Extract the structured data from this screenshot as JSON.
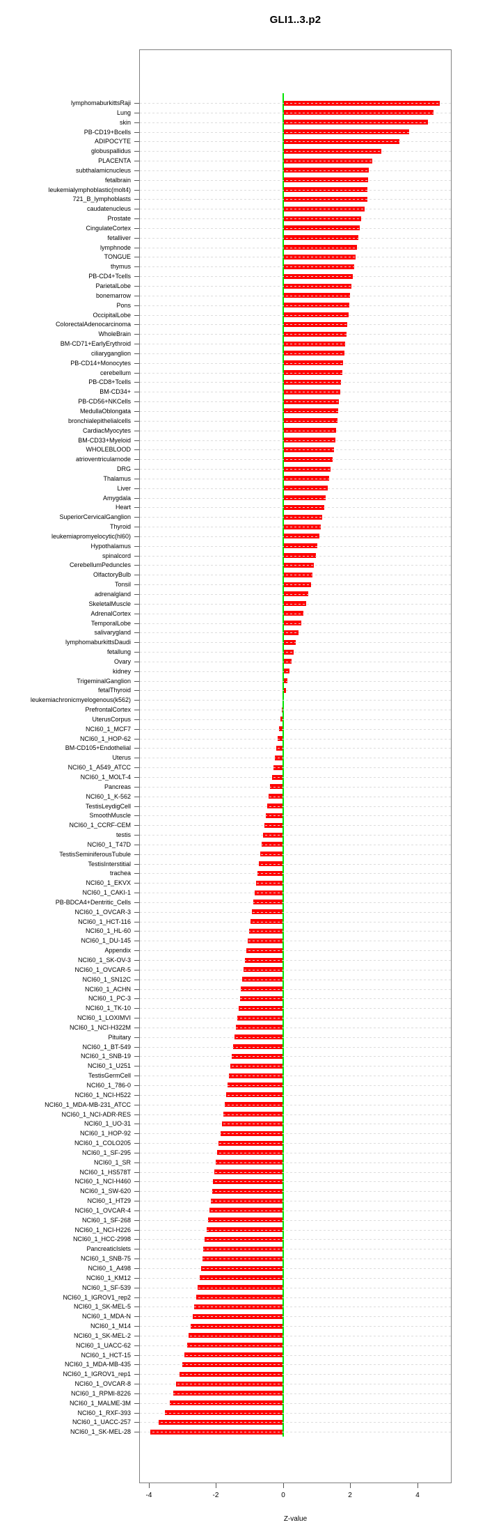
{
  "title": "GLI1..3.p2",
  "axis": {
    "xlabel": "Z-value",
    "x_tick_labels": [
      "-4",
      "-2",
      "0",
      "2",
      "4"
    ],
    "x_tick_values": [
      -4,
      -2,
      0,
      2,
      4
    ]
  },
  "colors": {
    "bar": "#ff0000",
    "zero_line": "#00e400",
    "grid": "#dcdcdc",
    "box_border": "#7f7f7f"
  },
  "chart_data": {
    "type": "bar",
    "orientation": "horizontal",
    "title": "GLI1..3.p2",
    "xlabel": "Z-value",
    "ylabel": "",
    "xlim": [
      -4.3,
      5.0
    ],
    "grid": "dotted-horizontal",
    "zero_reference_line": true,
    "categories": [
      "lymphomaburkittsRaji",
      "Lung",
      "skin",
      "PB-CD19+Bcells",
      "ADIPOCYTE",
      "globuspallidus",
      "PLACENTA",
      "subthalamicnucleus",
      "fetalbrain",
      "leukemialymphoblastic(molt4)",
      "721_B_lymphoblasts",
      "caudatenucleus",
      "Prostate",
      "CingulateCortex",
      "fetalliver",
      "lymphnode",
      "TONGUE",
      "thymus",
      "PB-CD4+Tcells",
      "ParietalLobe",
      "bonemarrow",
      "Pons",
      "OccipitalLobe",
      "ColorectalAdenocarcinoma",
      "WholeBrain",
      "BM-CD71+EarlyErythroid",
      "ciliaryganglion",
      "PB-CD14+Monocytes",
      "cerebellum",
      "PB-CD8+Tcells",
      "BM-CD34+",
      "PB-CD56+NKCells",
      "MedullaOblongata",
      "bronchialepithelialcells",
      "CardiacMyocytes",
      "BM-CD33+Myeloid",
      "WHOLEBLOOD",
      "atrioventricularnode",
      "DRG",
      "Thalamus",
      "Liver",
      "Amygdala",
      "Heart",
      "SuperiorCervicalGanglion",
      "Thyroid",
      "leukemiapromyelocytic(hl60)",
      "Hypothalamus",
      "spinalcord",
      "CerebellumPeduncles",
      "OlfactoryBulb",
      "Tonsil",
      "adrenalgland",
      "SkeletalMuscle",
      "AdrenalCortex",
      "TemporalLobe",
      "salivarygland",
      "lymphomaburkittsDaudi",
      "fetallung",
      "Ovary",
      "kidney",
      "TrigeminalGanglion",
      "fetalThyroid",
      "leukemiachronicmyelogenous(k562)",
      "PrefrontalCortex",
      "UterusCorpus",
      "NCI60_1_MCF7",
      "NCI60_1_HOP-62",
      "BM-CD105+Endothelial",
      "Uterus",
      "NCI60_1_A549_ATCC",
      "NCI60_1_MOLT-4",
      "Pancreas",
      "NCI60_1_K-562",
      "TestisLeydigCell",
      "SmoothMuscle",
      "NCI60_1_CCRF-CEM",
      "testis",
      "NCI60_1_T47D",
      "TestisSeminiferousTubule",
      "TestisInterstitial",
      "trachea",
      "NCI60_1_EKVX",
      "NCI60_1_CAKI-1",
      "PB-BDCA4+Dentritic_Cells",
      "NCI60_1_OVCAR-3",
      "NCI60_1_HCT-116",
      "NCI60_1_HL-60",
      "NCI60_1_DU-145",
      "Appendix",
      "NCI60_1_SK-OV-3",
      "NCI60_1_OVCAR-5",
      "NCI60_1_SN12C",
      "NCI60_1_ACHN",
      "NCI60_1_PC-3",
      "NCI60_1_TK-10",
      "NCI60_1_LOXIMVI",
      "NCI60_1_NCI-H322M",
      "Pituitary",
      "NCI60_1_BT-549",
      "NCI60_1_SNB-19",
      "NCI60_1_U251",
      "TestisGermCell",
      "NCI60_1_786-0",
      "NCI60_1_NCI-H522",
      "NCI60_1_MDA-MB-231_ATCC",
      "NCI60_1_NCI-ADR-RES",
      "NCI60_1_UO-31",
      "NCI60_1_HOP-92",
      "NCI60_1_COLO205",
      "NCI60_1_SF-295",
      "NCI60_1_SR",
      "NCI60_1_HS578T",
      "NCI60_1_NCI-H460",
      "NCI60_1_SW-620",
      "NCI60_1_HT29",
      "NCI60_1_OVCAR-4",
      "NCI60_1_SF-268",
      "NCI60_1_NCI-H226",
      "NCI60_1_HCC-2998",
      "PancreaticIslets",
      "NCI60_1_SNB-75",
      "NCI60_1_A498",
      "NCI60_1_KM12",
      "NCI60_1_SF-539",
      "NCI60_1_IGROV1_rep2",
      "NCI60_1_SK-MEL-5",
      "NCI60_1_MDA-N",
      "NCI60_1_M14",
      "NCI60_1_SK-MEL-2",
      "NCI60_1_UACC-62",
      "NCI60_1_HCT-15",
      "NCI60_1_MDA-MB-435",
      "NCI60_1_IGROV1_rep1",
      "NCI60_1_OVCAR-8",
      "NCI60_1_RPMI-8226",
      "NCI60_1_MALME-3M",
      "NCI60_1_RXF-393",
      "NCI60_1_UACC-257",
      "NCI60_1_SK-MEL-28"
    ],
    "values": [
      4.67,
      4.49,
      4.31,
      3.75,
      3.46,
      2.93,
      2.66,
      2.55,
      2.53,
      2.52,
      2.5,
      2.42,
      2.33,
      2.28,
      2.24,
      2.2,
      2.16,
      2.12,
      2.08,
      2.04,
      2.0,
      1.97,
      1.94,
      1.91,
      1.88,
      1.85,
      1.82,
      1.79,
      1.76,
      1.73,
      1.7,
      1.67,
      1.64,
      1.61,
      1.58,
      1.55,
      1.52,
      1.47,
      1.42,
      1.37,
      1.32,
      1.27,
      1.22,
      1.17,
      1.12,
      1.07,
      1.02,
      0.97,
      0.92,
      0.87,
      0.82,
      0.75,
      0.68,
      0.61,
      0.54,
      0.45,
      0.38,
      0.32,
      0.24,
      0.18,
      0.12,
      0.08,
      0.03,
      -0.04,
      -0.08,
      -0.12,
      -0.16,
      -0.2,
      -0.24,
      -0.28,
      -0.33,
      -0.38,
      -0.43,
      -0.48,
      -0.52,
      -0.56,
      -0.6,
      -0.64,
      -0.68,
      -0.72,
      -0.76,
      -0.8,
      -0.85,
      -0.89,
      -0.93,
      -0.97,
      -1.01,
      -1.05,
      -1.09,
      -1.13,
      -1.17,
      -1.21,
      -1.25,
      -1.29,
      -1.33,
      -1.37,
      -1.41,
      -1.45,
      -1.49,
      -1.53,
      -1.57,
      -1.61,
      -1.65,
      -1.69,
      -1.73,
      -1.77,
      -1.82,
      -1.87,
      -1.92,
      -1.96,
      -2.0,
      -2.04,
      -2.08,
      -2.12,
      -2.16,
      -2.2,
      -2.24,
      -2.28,
      -2.33,
      -2.37,
      -2.41,
      -2.45,
      -2.49,
      -2.54,
      -2.59,
      -2.65,
      -2.7,
      -2.76,
      -2.81,
      -2.86,
      -2.95,
      -3.0,
      -3.08,
      -3.18,
      -3.28,
      -3.38,
      -3.52,
      -3.7,
      -3.96
    ]
  }
}
